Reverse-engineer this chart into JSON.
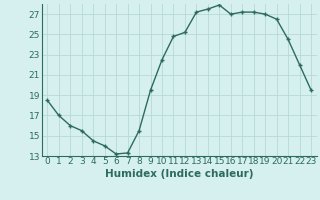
{
  "x": [
    0,
    1,
    2,
    3,
    4,
    5,
    6,
    7,
    8,
    9,
    10,
    11,
    12,
    13,
    14,
    15,
    16,
    17,
    18,
    19,
    20,
    21,
    22,
    23
  ],
  "y": [
    18.5,
    17.0,
    16.0,
    15.5,
    14.5,
    14.0,
    13.2,
    13.3,
    15.5,
    19.5,
    22.5,
    24.8,
    25.2,
    27.2,
    27.5,
    27.9,
    27.0,
    27.2,
    27.2,
    27.0,
    26.5,
    24.5,
    22.0,
    19.5
  ],
  "line_color": "#2d6b5e",
  "marker_color": "#2d6b5e",
  "bg_color": "#d6f0f0",
  "grid_color": "#b8d8d8",
  "xlabel": "Humidex (Indice chaleur)",
  "ylim": [
    13,
    28
  ],
  "xlim": [
    -0.5,
    23.5
  ],
  "yticks": [
    13,
    15,
    17,
    19,
    21,
    23,
    25,
    27
  ],
  "xticks": [
    0,
    1,
    2,
    3,
    4,
    5,
    6,
    7,
    8,
    9,
    10,
    11,
    12,
    13,
    14,
    15,
    16,
    17,
    18,
    19,
    20,
    21,
    22,
    23
  ],
  "tick_color": "#2d6b5e",
  "xlabel_fontsize": 7.5,
  "tick_fontsize": 6.5,
  "line_width": 1.0,
  "marker_size": 2.5
}
